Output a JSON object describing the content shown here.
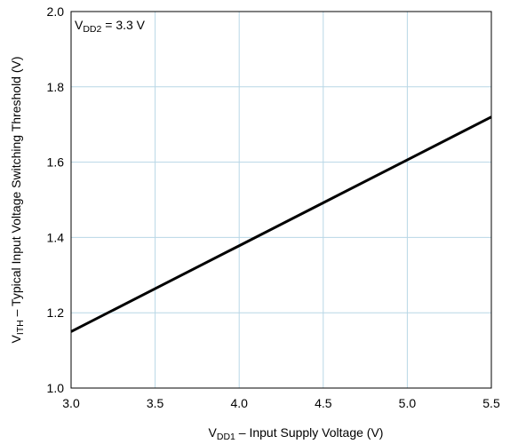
{
  "chart_data": {
    "type": "line",
    "title": "",
    "xlabel": {
      "main": "V",
      "sub": "DD1",
      "rest": " – Input Supply Voltage (V)"
    },
    "ylabel": {
      "main": "V",
      "sub": "ITH",
      "rest": " – Typical Input Voltage Switching Threshold (V)"
    },
    "annotation": {
      "main": "V",
      "sub": "DD2",
      "rest": " = 3.3 V"
    },
    "xlim": [
      3.0,
      5.5
    ],
    "ylim": [
      1.0,
      2.0
    ],
    "x_ticks": [
      3.0,
      3.5,
      4.0,
      4.5,
      5.0,
      5.5
    ],
    "x_tick_labels": [
      "3.0",
      "3.5",
      "4.0",
      "4.5",
      "5.0",
      "5.5"
    ],
    "y_ticks": [
      1.0,
      1.2,
      1.4,
      1.6,
      1.8,
      2.0
    ],
    "y_tick_labels": [
      "1.0",
      "1.2",
      "1.4",
      "1.6",
      "1.8",
      "2.0"
    ],
    "grid": true,
    "series": [
      {
        "x": [
          3.0,
          3.5,
          4.0,
          4.5,
          5.0,
          5.5
        ],
        "y": [
          1.15,
          1.264,
          1.378,
          1.492,
          1.606,
          1.72
        ]
      }
    ],
    "colors": {
      "line": "#000000",
      "grid": "#b8d7e6",
      "frame": "#000000"
    }
  }
}
